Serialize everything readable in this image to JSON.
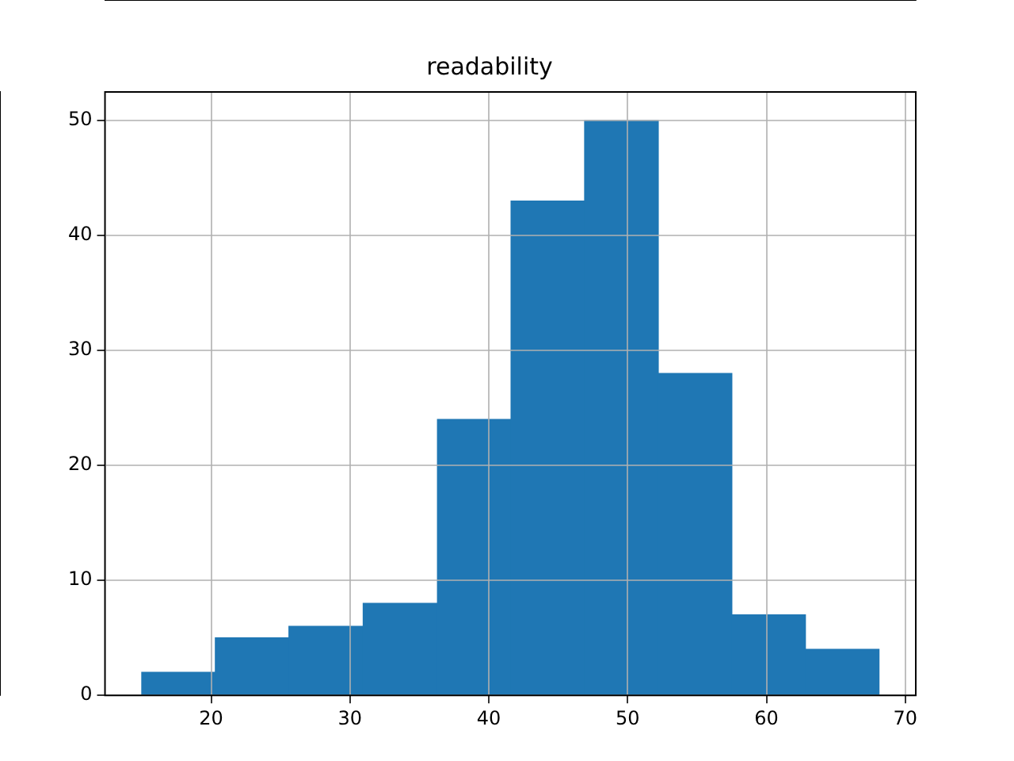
{
  "chart_data": {
    "type": "histogram",
    "title": "readability",
    "bins": [
      15.0,
      20.3,
      25.6,
      30.9,
      36.3,
      41.6,
      46.9,
      52.2,
      57.5,
      62.8,
      68.1
    ],
    "values": [
      2,
      5,
      6,
      8,
      24,
      43,
      50,
      28,
      7,
      4
    ],
    "color": "#1f77b4",
    "xlim": [
      12.35,
      70.75
    ],
    "xticks": [
      20,
      30,
      40,
      50,
      60,
      70
    ],
    "ylim": [
      0,
      52.5
    ],
    "yticks": [
      0,
      10,
      20,
      30,
      40,
      50
    ],
    "grid": true
  }
}
